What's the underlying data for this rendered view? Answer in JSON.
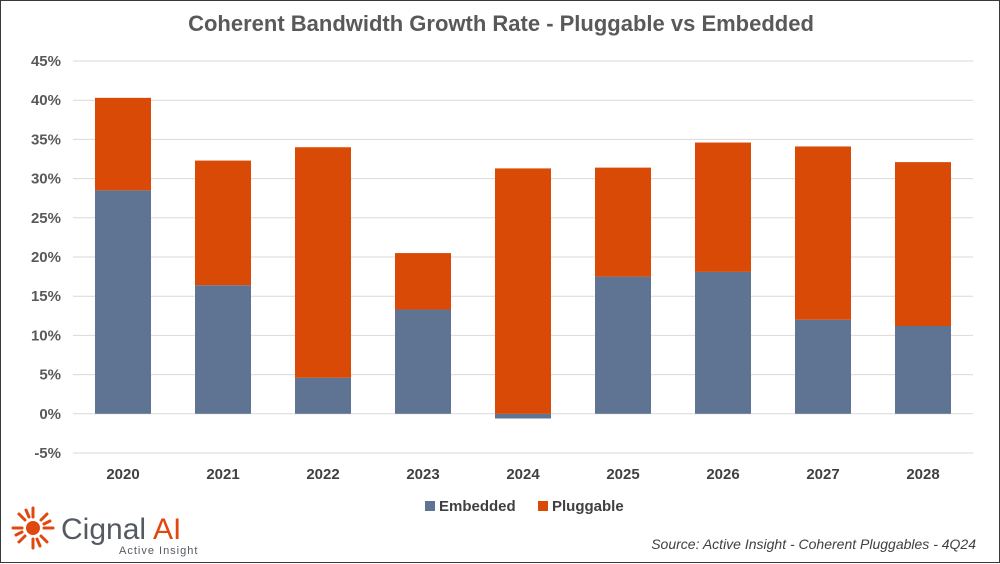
{
  "chart_data": {
    "type": "bar",
    "stacked": true,
    "title": "Coherent Bandwidth Growth Rate - Pluggable vs Embedded",
    "categories": [
      "2020",
      "2021",
      "2022",
      "2023",
      "2024",
      "2025",
      "2026",
      "2027",
      "2028"
    ],
    "series": [
      {
        "name": "Embedded",
        "color": "#5f7392",
        "values": [
          28.5,
          16.4,
          4.6,
          13.3,
          -0.6,
          17.5,
          18.1,
          12.0,
          11.2
        ]
      },
      {
        "name": "Pluggable",
        "color": "#d84a05",
        "values": [
          11.8,
          15.9,
          29.4,
          7.2,
          31.3,
          13.9,
          16.5,
          22.1,
          20.9
        ]
      }
    ],
    "yticks": [
      "-5%",
      "0%",
      "5%",
      "10%",
      "15%",
      "20%",
      "25%",
      "30%",
      "35%",
      "40%",
      "45%"
    ],
    "ylim": [
      -5,
      45
    ],
    "xlabel": "",
    "ylabel": "",
    "legend_position": "bottom",
    "grid": true
  },
  "source": "Source: Active Insight - Coherent Pluggables - 4Q24",
  "logo": {
    "name": "Cignal",
    "suffix": "AI",
    "tagline": "Active Insight"
  }
}
